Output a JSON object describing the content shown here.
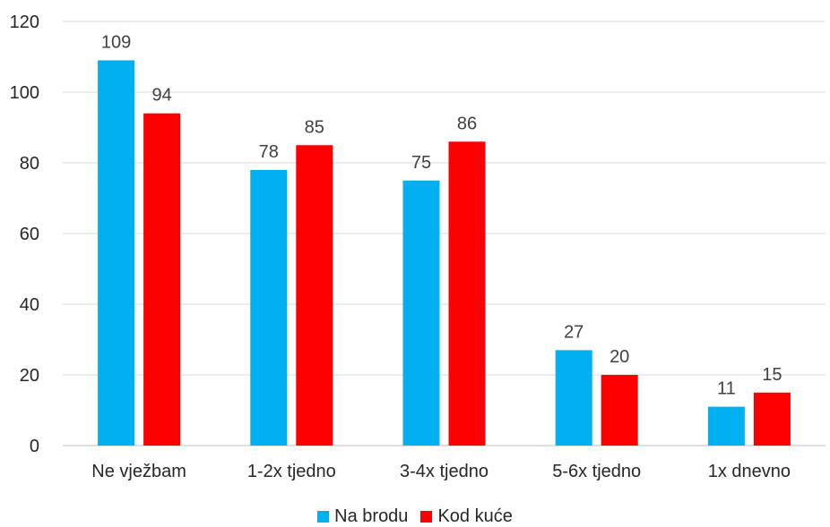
{
  "chart_data": {
    "type": "bar",
    "categories": [
      "Ne vježbam",
      "1-2x tjedno",
      "3-4x tjedno",
      "5-6x tjedno",
      "1x dnevno"
    ],
    "series": [
      {
        "name": "Na brodu",
        "values": [
          109,
          78,
          75,
          27,
          11
        ],
        "color": "#00B0F0"
      },
      {
        "name": "Kod kuće",
        "values": [
          94,
          85,
          86,
          20,
          15
        ],
        "color": "#FF0000"
      }
    ],
    "yticks": [
      0,
      20,
      40,
      60,
      80,
      100,
      120
    ],
    "ylim": [
      0,
      120
    ],
    "grid": true,
    "legend_position": "bottom",
    "data_labels": true
  }
}
